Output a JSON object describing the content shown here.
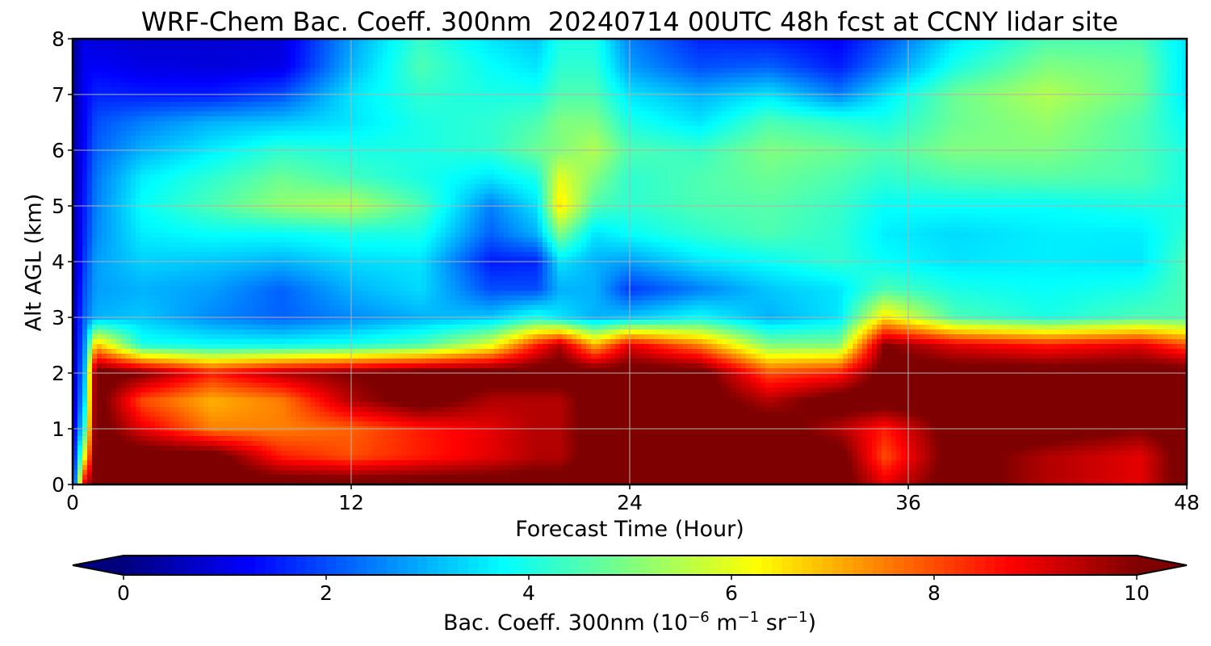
{
  "chart_data": {
    "type": "heatmap",
    "title": "WRF-Chem Bac. Coeff. 300nm  20240714 00UTC 48h fcst at CCNY lidar site",
    "xlabel": "Forecast Time (Hour)",
    "ylabel": "Alt AGL (km)",
    "xlim": [
      0,
      48
    ],
    "ylim": [
      0,
      8
    ],
    "xticks": [
      "0",
      "12",
      "24",
      "36",
      "48"
    ],
    "yticks": [
      "0",
      "1",
      "2",
      "3",
      "4",
      "5",
      "6",
      "7",
      "8"
    ],
    "grid": true,
    "colormap": "jet",
    "colorbar": {
      "label_text": "Bac. Coeff. 300nm  (10",
      "label_exp1": "−6",
      "label_mid": " m",
      "label_exp2": "−1",
      "label_end": " sr",
      "label_exp3": "−1",
      "label_close": ")",
      "range": [
        0,
        10
      ],
      "ticks": [
        "0",
        "2",
        "4",
        "6",
        "8",
        "10"
      ],
      "extend": "both"
    },
    "x": [
      0,
      0.5,
      1,
      3,
      6,
      9,
      12,
      15,
      18,
      20,
      21,
      22.5,
      24,
      27,
      30,
      33,
      35,
      38,
      42,
      46,
      48
    ],
    "y": [
      0,
      0.5,
      1,
      1.5,
      2,
      2.5,
      3,
      3.5,
      4,
      4.5,
      5,
      5.5,
      6,
      6.5,
      7,
      7.5,
      8
    ],
    "z": [
      [
        1.0,
        9.0,
        10.5,
        10.5,
        10.5,
        10.5,
        10.5,
        10.5,
        10.5,
        10.5,
        10.5,
        10.5,
        10.5,
        10.5,
        10.5,
        10.5,
        9.0,
        10.5,
        9.5,
        9.0,
        10.5
      ],
      [
        0.8,
        6.0,
        10.5,
        10.5,
        10.5,
        8.5,
        8.0,
        8.5,
        9.0,
        9.5,
        9.5,
        10.5,
        10.5,
        10.5,
        10.5,
        10.5,
        8.0,
        10.5,
        9.5,
        9.0,
        10.5
      ],
      [
        0.7,
        4.0,
        10.5,
        9.0,
        7.5,
        7.5,
        7.8,
        8.5,
        9.0,
        9.5,
        9.5,
        10.5,
        10.5,
        10.5,
        10.5,
        9.5,
        8.5,
        10.5,
        10.5,
        10.0,
        10.5
      ],
      [
        0.6,
        3.2,
        10.5,
        8.0,
        7.0,
        7.5,
        9.5,
        10.5,
        9.5,
        9.5,
        9.5,
        10.5,
        10.5,
        10.5,
        9.5,
        10.5,
        10.5,
        10.5,
        10.5,
        10.5,
        10.5
      ],
      [
        0.5,
        2.8,
        10.5,
        10.0,
        8.5,
        9.5,
        10.0,
        10.5,
        10.5,
        10.5,
        10.5,
        10.5,
        10.5,
        10.5,
        8.0,
        8.5,
        10.5,
        10.5,
        10.5,
        10.5,
        10.5
      ],
      [
        0.4,
        2.5,
        7.0,
        4.0,
        3.8,
        3.8,
        4.0,
        4.5,
        6.0,
        8.5,
        9.5,
        7.0,
        9.0,
        7.5,
        5.0,
        5.0,
        10.0,
        9.0,
        8.5,
        9.0,
        8.0
      ],
      [
        0.4,
        2.2,
        3.0,
        3.2,
        2.6,
        2.2,
        2.6,
        3.0,
        3.2,
        4.0,
        3.5,
        3.0,
        3.2,
        3.8,
        3.0,
        3.5,
        6.5,
        4.5,
        4.0,
        4.5,
        4.5
      ],
      [
        0.3,
        2.0,
        2.8,
        3.0,
        2.8,
        2.2,
        3.0,
        3.4,
        2.0,
        2.0,
        3.0,
        3.0,
        1.8,
        2.5,
        3.2,
        3.5,
        4.5,
        4.0,
        3.8,
        4.0,
        4.5
      ],
      [
        0.3,
        1.8,
        2.8,
        3.3,
        3.2,
        3.0,
        3.4,
        3.5,
        1.5,
        1.6,
        3.5,
        3.0,
        2.8,
        3.5,
        3.8,
        4.2,
        3.8,
        3.5,
        3.6,
        3.5,
        4.5
      ],
      [
        0.3,
        1.6,
        2.6,
        3.6,
        3.8,
        3.8,
        4.0,
        4.0,
        2.2,
        3.0,
        5.0,
        3.5,
        3.8,
        4.2,
        4.5,
        4.2,
        3.6,
        3.4,
        3.6,
        3.6,
        4.2
      ],
      [
        0.3,
        1.5,
        2.5,
        3.8,
        4.5,
        5.2,
        5.5,
        4.5,
        2.5,
        3.5,
        6.5,
        4.5,
        4.2,
        4.5,
        4.6,
        4.3,
        3.8,
        3.8,
        3.8,
        4.0,
        4.0
      ],
      [
        0.3,
        1.4,
        2.4,
        3.6,
        4.2,
        4.8,
        4.4,
        4.0,
        3.5,
        4.0,
        6.0,
        5.0,
        4.2,
        4.5,
        4.8,
        4.5,
        4.2,
        4.5,
        4.6,
        4.5,
        4.0
      ],
      [
        0.3,
        1.3,
        2.2,
        3.0,
        3.6,
        4.2,
        4.0,
        4.0,
        4.2,
        4.8,
        5.0,
        5.5,
        4.5,
        4.3,
        5.0,
        4.8,
        4.5,
        5.0,
        5.0,
        4.5,
        4.0
      ],
      [
        0.3,
        1.2,
        2.0,
        2.5,
        3.0,
        3.2,
        3.5,
        4.0,
        4.2,
        4.5,
        5.0,
        5.0,
        4.0,
        3.5,
        4.5,
        4.2,
        4.0,
        4.8,
        5.2,
        4.5,
        3.8
      ],
      [
        0.2,
        1.2,
        1.6,
        1.5,
        1.5,
        2.0,
        3.5,
        4.2,
        4.0,
        4.0,
        4.5,
        4.5,
        3.5,
        3.0,
        3.5,
        2.5,
        3.5,
        4.8,
        5.5,
        4.8,
        3.5
      ],
      [
        0.2,
        1.1,
        1.2,
        1.0,
        0.9,
        1.0,
        3.0,
        4.5,
        3.8,
        3.5,
        4.2,
        4.2,
        2.8,
        2.0,
        2.2,
        1.5,
        2.5,
        4.0,
        5.0,
        4.8,
        3.5
      ],
      [
        0.2,
        1.0,
        0.9,
        0.8,
        0.8,
        0.9,
        2.8,
        4.3,
        3.5,
        3.2,
        4.0,
        4.0,
        2.5,
        1.6,
        1.5,
        1.2,
        2.0,
        3.5,
        4.5,
        4.5,
        3.5
      ]
    ]
  }
}
